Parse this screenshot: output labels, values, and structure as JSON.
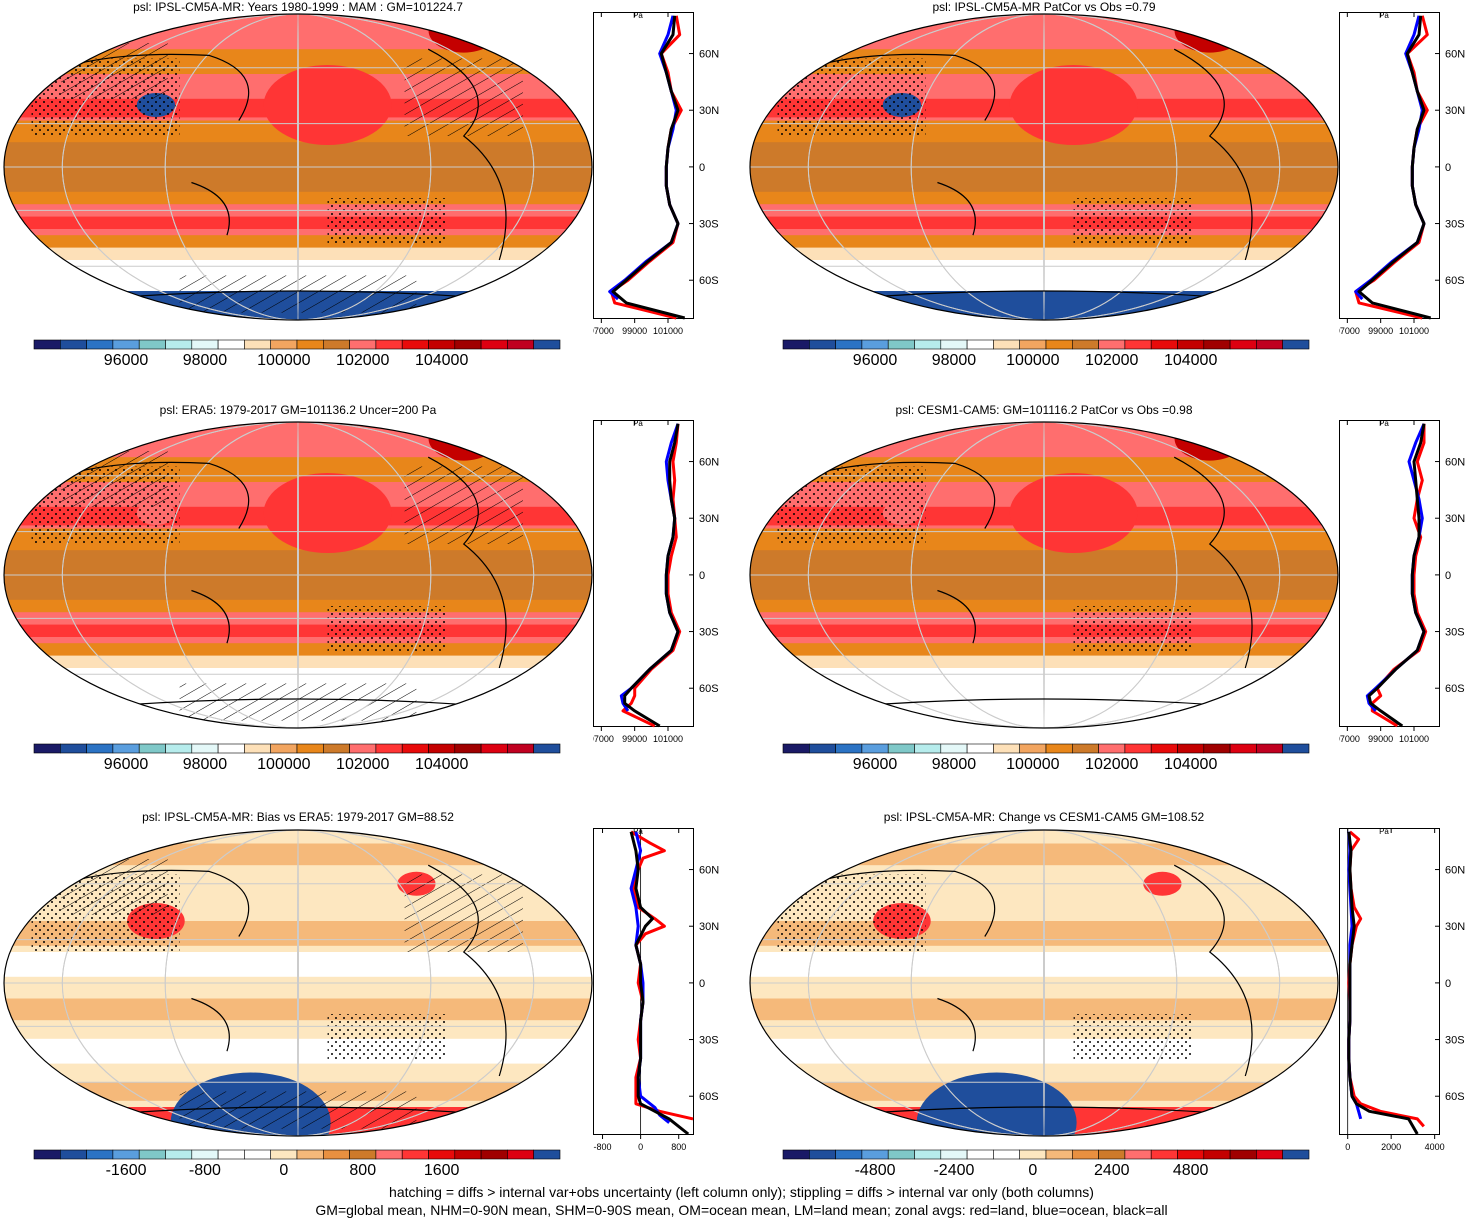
{
  "panels": [
    {
      "title": "psl: IPSL-CM5A-MR: Years 1980-1999 : MAM : GM=101224.7",
      "palette": "abs",
      "colorbar_labels": [
        "96000",
        "98000",
        "100000",
        "102000",
        "104000"
      ],
      "zonal": {
        "unit": "Pa",
        "x_ticks": [
          "97000",
          "99000",
          "101000"
        ],
        "lat_ticks": [
          "60N",
          "30N",
          "0",
          "30S",
          "60S"
        ]
      }
    },
    {
      "title": "psl: IPSL-CM5A-MR PatCor vs Obs =0.79",
      "palette": "abs",
      "colorbar_labels": [
        "96000",
        "98000",
        "100000",
        "102000",
        "104000"
      ],
      "zonal": {
        "unit": "Pa",
        "x_ticks": [
          "97000",
          "99000",
          "101000"
        ],
        "lat_ticks": [
          "60N",
          "30N",
          "0",
          "30S",
          "60S"
        ]
      }
    },
    {
      "title": "psl: ERA5: 1979-2017 GM=101136.2 Uncer=200 Pa",
      "palette": "abs",
      "colorbar_labels": [
        "96000",
        "98000",
        "100000",
        "102000",
        "104000"
      ],
      "zonal": {
        "unit": "Pa",
        "x_ticks": [
          "97000",
          "99000",
          "101000"
        ],
        "lat_ticks": [
          "60N",
          "30N",
          "0",
          "30S",
          "60S"
        ]
      }
    },
    {
      "title": "psl: CESM1-CAM5: GM=101116.2 PatCor vs Obs =0.98",
      "palette": "abs",
      "colorbar_labels": [
        "96000",
        "98000",
        "100000",
        "102000",
        "104000"
      ],
      "zonal": {
        "unit": "Pa",
        "x_ticks": [
          "97000",
          "99000",
          "101000"
        ],
        "lat_ticks": [
          "60N",
          "30N",
          "0",
          "30S",
          "60S"
        ]
      }
    },
    {
      "title": "psl: IPSL-CM5A-MR: Bias vs ERA5: 1979-2017 GM=88.52",
      "palette": "diff",
      "colorbar_labels": [
        "-1600",
        "-800",
        "0",
        "800",
        "1600"
      ],
      "zonal": {
        "unit": "Pa",
        "x_ticks": [
          "-800",
          "0",
          "800"
        ],
        "lat_ticks": [
          "60N",
          "30N",
          "0",
          "30S",
          "60S"
        ]
      }
    },
    {
      "title": "psl: IPSL-CM5A-MR: Change vs CESM1-CAM5 GM=108.52",
      "palette": "diff",
      "colorbar_labels": [
        "-4800",
        "-2400",
        "0",
        "2400",
        "4800"
      ],
      "zonal": {
        "unit": "Pa",
        "x_ticks": [
          "0",
          "2000",
          "4000"
        ],
        "lat_ticks": [
          "60N",
          "30N",
          "0",
          "30S",
          "60S"
        ]
      }
    }
  ],
  "colors": {
    "abs": [
      "#1a1a66",
      "#1f4e9c",
      "#2b73c4",
      "#5a9ede",
      "#7fc8c8",
      "#b6ecec",
      "#e4f8f8",
      "#ffffff",
      "#fde0b8",
      "#f2a560",
      "#e8861a",
      "#cd7a2a",
      "#ff6e6e",
      "#ff3535",
      "#e80a0a",
      "#c40000",
      "#a00000",
      "#dd0011",
      "#c00020",
      "#1f4e9c"
    ],
    "diff": [
      "#1a1a66",
      "#1f4e9c",
      "#2b73c4",
      "#5a9ede",
      "#7fc8c8",
      "#b6ecec",
      "#e4f8f8",
      "#ffffff",
      "#ffffff",
      "#fde7c0",
      "#f5b97a",
      "#e89040",
      "#cd7a2a",
      "#ff6e6e",
      "#ff3535",
      "#e80a0a",
      "#c40000",
      "#a00000",
      "#dd0011",
      "#1f4e9c"
    ],
    "land_line": "#ff0000",
    "ocean_line": "#0000ff",
    "all_line": "#000000",
    "grid": "#cccccc"
  },
  "chart_data": [
    {
      "type": "line",
      "panel": 1,
      "xlim": [
        96500,
        102500
      ],
      "series": [
        {
          "name": "land",
          "lat": [
            -80,
            -72,
            -66,
            -60,
            -50,
            -40,
            -30,
            -20,
            -10,
            0,
            10,
            20,
            30,
            40,
            50,
            60,
            70,
            80
          ],
          "values": [
            101500,
            97800,
            97600,
            98600,
            99900,
            101300,
            101600,
            101100,
            100900,
            100900,
            101000,
            101200,
            101800,
            101200,
            101000,
            100600,
            101700,
            101500
          ]
        },
        {
          "name": "ocean",
          "lat": [
            -70,
            -66,
            -60,
            -50,
            -40,
            -30,
            -20,
            -10,
            0,
            10,
            20,
            30,
            40,
            50,
            60,
            70,
            80
          ],
          "values": [
            98000,
            97500,
            98400,
            99700,
            101200,
            101600,
            101100,
            100900,
            100900,
            101000,
            101300,
            101500,
            101200,
            100900,
            100500,
            101000,
            101300
          ]
        },
        {
          "name": "all",
          "lat": [
            -80,
            -72,
            -66,
            -60,
            -50,
            -40,
            -30,
            -20,
            -10,
            0,
            10,
            20,
            30,
            40,
            50,
            60,
            70,
            80
          ],
          "values": [
            102000,
            98500,
            97700,
            98500,
            99800,
            101200,
            101600,
            101100,
            100900,
            100900,
            101000,
            101200,
            101600,
            101200,
            100900,
            100600,
            101300,
            101400
          ]
        }
      ]
    },
    {
      "type": "line",
      "panel": 2,
      "xlim": [
        96500,
        102500
      ],
      "series": [
        {
          "name": "land",
          "lat": [
            -80,
            -72,
            -66,
            -60,
            -50,
            -40,
            -30,
            -20,
            -10,
            0,
            10,
            20,
            30,
            40,
            50,
            60,
            70,
            80
          ],
          "values": [
            101500,
            97700,
            97500,
            98600,
            99900,
            101300,
            101600,
            101100,
            100900,
            100900,
            101000,
            101200,
            101800,
            101200,
            101000,
            100600,
            101800,
            101500
          ]
        },
        {
          "name": "ocean",
          "lat": [
            -70,
            -66,
            -60,
            -50,
            -40,
            -30,
            -20,
            -10,
            0,
            10,
            20,
            30,
            40,
            50,
            60,
            70,
            80
          ],
          "values": [
            97900,
            97500,
            98400,
            99700,
            101200,
            101600,
            101100,
            100900,
            100900,
            101000,
            101300,
            101500,
            101200,
            100900,
            100500,
            101000,
            101300
          ]
        },
        {
          "name": "all",
          "lat": [
            -80,
            -72,
            -66,
            -60,
            -50,
            -40,
            -30,
            -20,
            -10,
            0,
            10,
            20,
            30,
            40,
            50,
            60,
            70,
            80
          ],
          "values": [
            102000,
            98500,
            97700,
            98500,
            99800,
            101200,
            101600,
            101100,
            100900,
            100900,
            101000,
            101200,
            101600,
            101200,
            100900,
            100600,
            101300,
            101400
          ]
        }
      ]
    },
    {
      "type": "line",
      "panel": 3,
      "xlim": [
        96500,
        102500
      ],
      "series": [
        {
          "name": "land",
          "lat": [
            -80,
            -72,
            -68,
            -64,
            -60,
            -50,
            -40,
            -30,
            -20,
            -10,
            0,
            10,
            20,
            30,
            40,
            50,
            60,
            70,
            80
          ],
          "values": [
            100200,
            98300,
            98800,
            99000,
            99000,
            100000,
            101300,
            101700,
            101200,
            101000,
            101000,
            101200,
            101500,
            101400,
            101300,
            101400,
            101300,
            101500,
            101600
          ]
        },
        {
          "name": "ocean",
          "lat": [
            -72,
            -68,
            -64,
            -60,
            -50,
            -40,
            -30,
            -20,
            -10,
            0,
            10,
            20,
            30,
            40,
            50,
            60,
            70,
            80
          ],
          "values": [
            98600,
            98300,
            98200,
            98800,
            99900,
            101200,
            101600,
            101100,
            100900,
            100900,
            101000,
            101300,
            101400,
            101200,
            101000,
            100900,
            101200,
            101600
          ]
        },
        {
          "name": "all",
          "lat": [
            -80,
            -72,
            -68,
            -64,
            -60,
            -50,
            -40,
            -30,
            -20,
            -10,
            0,
            10,
            20,
            30,
            40,
            50,
            60,
            70,
            80
          ],
          "values": [
            100500,
            99000,
            98400,
            98400,
            98800,
            99900,
            101200,
            101600,
            101100,
            100900,
            100900,
            101000,
            101300,
            101400,
            101200,
            101100,
            101100,
            101400,
            101600
          ]
        }
      ]
    },
    {
      "type": "line",
      "panel": 4,
      "xlim": [
        96500,
        102500
      ],
      "series": [
        {
          "name": "land",
          "lat": [
            -80,
            -72,
            -68,
            -64,
            -60,
            -50,
            -40,
            -30,
            -20,
            -10,
            0,
            10,
            20,
            30,
            40,
            50,
            60,
            70,
            80
          ],
          "values": [
            100000,
            98500,
            98500,
            99000,
            98800,
            99800,
            101300,
            101700,
            101200,
            101000,
            101000,
            101100,
            101400,
            101000,
            101200,
            101500,
            101200,
            101600,
            101600
          ]
        },
        {
          "name": "ocean",
          "lat": [
            -72,
            -68,
            -64,
            -60,
            -50,
            -40,
            -30,
            -20,
            -10,
            0,
            10,
            20,
            30,
            40,
            50,
            60,
            70,
            80
          ],
          "values": [
            98700,
            98300,
            98200,
            98700,
            99900,
            101200,
            101600,
            101100,
            100900,
            100900,
            101000,
            101300,
            101500,
            101300,
            101000,
            100700,
            101100,
            101600
          ]
        },
        {
          "name": "all",
          "lat": [
            -80,
            -72,
            -68,
            -64,
            -60,
            -50,
            -40,
            -30,
            -20,
            -10,
            0,
            10,
            20,
            30,
            40,
            50,
            60,
            70,
            80
          ],
          "values": [
            100300,
            99000,
            98400,
            98300,
            98800,
            99900,
            101200,
            101600,
            101100,
            100900,
            100900,
            101000,
            101300,
            101300,
            101200,
            101100,
            101000,
            101400,
            101600
          ]
        }
      ]
    },
    {
      "type": "line",
      "panel": 5,
      "xlim": [
        -1000,
        1100
      ],
      "series": [
        {
          "name": "land",
          "lat": [
            -72,
            -68,
            -64,
            -60,
            -50,
            -40,
            -30,
            -20,
            -10,
            0,
            10,
            20,
            26,
            30,
            34,
            40,
            50,
            60,
            66,
            70,
            74,
            80
          ],
          "values": [
            1100,
            400,
            -100,
            -100,
            -100,
            0,
            -50,
            0,
            50,
            -50,
            0,
            -100,
            100,
            500,
            300,
            -50,
            -150,
            -50,
            50,
            500,
            200,
            -200
          ]
        },
        {
          "name": "ocean",
          "lat": [
            -74,
            -70,
            -66,
            -60,
            -50,
            -40,
            -30,
            -20,
            -10,
            0,
            10,
            20,
            30,
            40,
            50,
            60,
            70,
            80
          ],
          "values": [
            600,
            400,
            300,
            0,
            -50,
            0,
            0,
            0,
            50,
            50,
            0,
            -100,
            -50,
            -100,
            -200,
            -100,
            0,
            -100
          ]
        },
        {
          "name": "all",
          "lat": [
            -80,
            -72,
            -68,
            -64,
            -60,
            -50,
            -40,
            -30,
            -20,
            -10,
            0,
            10,
            20,
            30,
            34,
            40,
            50,
            60,
            70,
            80
          ],
          "values": [
            1000,
            600,
            300,
            0,
            -50,
            -50,
            0,
            0,
            0,
            50,
            0,
            0,
            -100,
            100,
            250,
            0,
            -100,
            -50,
            -100,
            -200
          ]
        }
      ]
    },
    {
      "type": "line",
      "panel": 6,
      "xlim": [
        -400,
        4200
      ],
      "series": [
        {
          "name": "land",
          "lat": [
            -76,
            -72,
            -68,
            -64,
            -60,
            -50,
            -40,
            -30,
            -20,
            -10,
            0,
            10,
            20,
            30,
            34,
            40,
            50,
            60,
            70,
            76,
            80
          ],
          "values": [
            3500,
            3200,
            1500,
            600,
            300,
            100,
            50,
            50,
            100,
            100,
            50,
            100,
            200,
            400,
            600,
            300,
            150,
            100,
            150,
            500,
            100
          ]
        },
        {
          "name": "ocean",
          "lat": [
            -72,
            -68,
            -64,
            -60,
            -50,
            -40,
            -30,
            -20,
            -10,
            0,
            10,
            20,
            30,
            40,
            50,
            60,
            70,
            80
          ],
          "values": [
            600,
            500,
            400,
            200,
            100,
            50,
            50,
            100,
            100,
            100,
            100,
            100,
            200,
            150,
            100,
            50,
            100,
            50
          ]
        },
        {
          "name": "all",
          "lat": [
            -80,
            -72,
            -68,
            -64,
            -60,
            -50,
            -40,
            -30,
            -20,
            -10,
            0,
            10,
            20,
            30,
            40,
            50,
            60,
            70,
            80
          ],
          "values": [
            3200,
            2800,
            1000,
            400,
            200,
            100,
            50,
            50,
            100,
            100,
            100,
            100,
            200,
            300,
            200,
            150,
            100,
            150,
            50
          ]
        }
      ]
    }
  ],
  "footer": {
    "line1": "hatching = diffs > internal var+obs uncertainty (left column only); stippling = diffs > internal var only (both columns)",
    "line2": "GM=global mean, NHM=0-90N mean, SHM=0-90S mean, OM=ocean mean, LM=land mean; zonal avgs: red=land, blue=ocean, black=all"
  }
}
